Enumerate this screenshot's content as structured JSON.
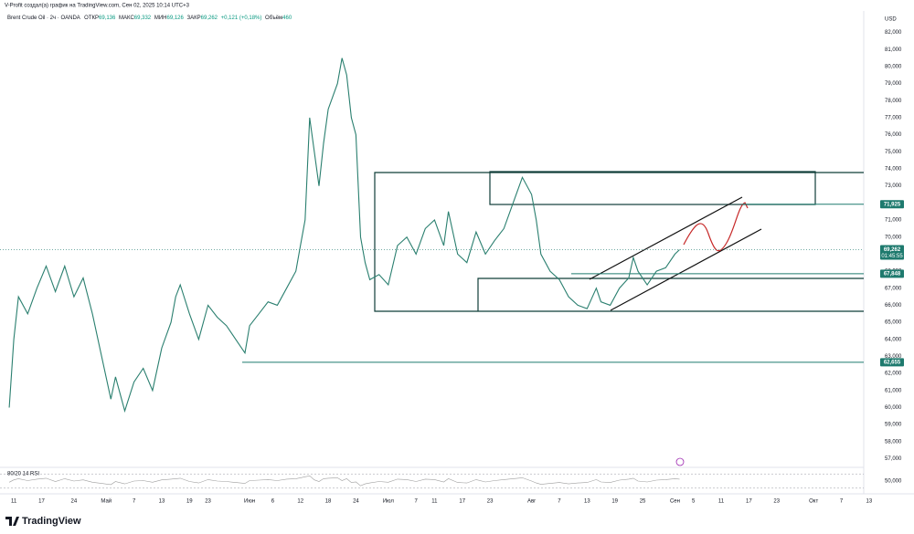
{
  "header": {
    "credit": "V-Profit создал(а) график на TradingView.com, Сен 02, 2025 10:14 UTC+3",
    "symbol": "Brent Crude Oil · 2ч · OANDA",
    "open_label": "ОТКР",
    "open": "69,136",
    "high_label": "МАКС",
    "high": "69,332",
    "low_label": "МИН",
    "low": "69,126",
    "close_label": "ЗАКР",
    "close": "69,262",
    "change": "+0,121 (+0,18%)",
    "volume_label": "Объём",
    "volume": "460"
  },
  "footer": {
    "brand": "TradingView"
  },
  "chart_data": {
    "type": "line",
    "currency": "USD",
    "color": "#2a7f6f",
    "x": [
      -1,
      0,
      1,
      3,
      5,
      7,
      9,
      11,
      13,
      15,
      17,
      19,
      21,
      22,
      24,
      26,
      28,
      30,
      32,
      34,
      35,
      36,
      38,
      40,
      42,
      44,
      46,
      48,
      50,
      51,
      53,
      55,
      57,
      59,
      61,
      62,
      63,
      64,
      65,
      66,
      67,
      68,
      70,
      71,
      72,
      73,
      74,
      75,
      76,
      77,
      79,
      81,
      83,
      85,
      87,
      89,
      91,
      93,
      94,
      96,
      98,
      100,
      102,
      104,
      106,
      108,
      110,
      112,
      113,
      114,
      116,
      118,
      120,
      122,
      124,
      126,
      127,
      129,
      131,
      133,
      134,
      135,
      137,
      139,
      141,
      143,
      144
    ],
    "values": [
      60.0,
      64.0,
      66.5,
      65.5,
      67.0,
      68.3,
      66.8,
      68.3,
      66.5,
      67.6,
      65.5,
      63.0,
      60.5,
      61.8,
      59.8,
      61.5,
      62.3,
      61.0,
      63.5,
      65.0,
      66.5,
      67.2,
      65.5,
      64.0,
      66.0,
      65.3,
      64.8,
      64.0,
      63.2,
      64.8,
      65.5,
      66.2,
      66.0,
      67.0,
      68.0,
      69.5,
      71.0,
      77.0,
      75.0,
      73.0,
      75.5,
      77.5,
      79.0,
      80.5,
      79.5,
      77.0,
      76.0,
      70.0,
      68.5,
      67.5,
      67.8,
      67.2,
      69.5,
      70.0,
      69.0,
      70.5,
      71.0,
      69.5,
      71.5,
      69.0,
      68.5,
      70.3,
      69.0,
      69.8,
      70.5,
      72.0,
      73.5,
      72.5,
      71.0,
      69.0,
      68.0,
      67.5,
      66.5,
      66.0,
      65.8,
      67.0,
      66.2,
      66.0,
      67.0,
      67.6,
      68.8,
      68.0,
      67.2,
      68.0,
      68.2,
      69.0,
      69.262
    ],
    "xlim": [
      -2,
      187
    ],
    "xticks": [
      {
        "value": 0,
        "label": "11"
      },
      {
        "value": 6,
        "label": "17"
      },
      {
        "value": 13,
        "label": "24"
      },
      {
        "value": 20,
        "label": "Май"
      },
      {
        "value": 26,
        "label": "7"
      },
      {
        "value": 32,
        "label": "13"
      },
      {
        "value": 38,
        "label": "19"
      },
      {
        "value": 42,
        "label": "23"
      },
      {
        "value": 51,
        "label": "Июн"
      },
      {
        "value": 56,
        "label": "6"
      },
      {
        "value": 62,
        "label": "12"
      },
      {
        "value": 68,
        "label": "18"
      },
      {
        "value": 74,
        "label": "24"
      },
      {
        "value": 81,
        "label": "Июл"
      },
      {
        "value": 87,
        "label": "7"
      },
      {
        "value": 91,
        "label": "11"
      },
      {
        "value": 97,
        "label": "17"
      },
      {
        "value": 103,
        "label": "23"
      },
      {
        "value": 112,
        "label": "Авг"
      },
      {
        "value": 118,
        "label": "7"
      },
      {
        "value": 124,
        "label": "13"
      },
      {
        "value": 130,
        "label": "19"
      },
      {
        "value": 136,
        "label": "25"
      },
      {
        "value": 143,
        "label": "Сен"
      },
      {
        "value": 147,
        "label": "5"
      },
      {
        "value": 153,
        "label": "11"
      },
      {
        "value": 159,
        "label": "17"
      },
      {
        "value": 165,
        "label": "23"
      },
      {
        "value": 173,
        "label": "Окт"
      },
      {
        "value": 179,
        "label": "7"
      },
      {
        "value": 185,
        "label": "13"
      }
    ],
    "ylim": [
      56.6,
      83.1
    ],
    "yticks": [
      {
        "value": 57,
        "label": "57,000"
      },
      {
        "value": 58,
        "label": "58,000"
      },
      {
        "value": 59,
        "label": "59,000"
      },
      {
        "value": 60,
        "label": "60,000"
      },
      {
        "value": 61,
        "label": "61,000"
      },
      {
        "value": 62,
        "label": "62,000"
      },
      {
        "value": 63,
        "label": "63,000"
      },
      {
        "value": 64,
        "label": "64,000"
      },
      {
        "value": 65,
        "label": "65,000"
      },
      {
        "value": 66,
        "label": "66,000"
      },
      {
        "value": 67,
        "label": "67,000"
      },
      {
        "value": 68,
        "label": "68,000"
      },
      {
        "value": 69,
        "label": "69,000"
      },
      {
        "value": 70,
        "label": "70,000"
      },
      {
        "value": 71,
        "label": "71,000"
      },
      {
        "value": 72,
        "label": "72,000"
      },
      {
        "value": 73,
        "label": "73,000"
      },
      {
        "value": 74,
        "label": "74,000"
      },
      {
        "value": 75,
        "label": "75,000"
      },
      {
        "value": 76,
        "label": "76,000"
      },
      {
        "value": 77,
        "label": "77,000"
      },
      {
        "value": 78,
        "label": "78,000"
      },
      {
        "value": 79,
        "label": "79,000"
      },
      {
        "value": 80,
        "label": "80,000"
      },
      {
        "value": 81,
        "label": "81,000"
      },
      {
        "value": 82,
        "label": "82,000"
      }
    ],
    "levels": [
      {
        "value": 71.925,
        "label": "71,925"
      },
      {
        "value": 67.848,
        "label": "67,848"
      },
      {
        "value": 62.655,
        "label": "62,655"
      }
    ],
    "last": {
      "value": 69.262,
      "label": "69,262",
      "countdown": "01:45:55"
    },
    "rsi": {
      "label": "80/20 14 RSI",
      "mid_label": "50,000",
      "ylim": [
        0,
        100
      ],
      "levels": [
        80,
        20
      ],
      "color": "#9e9e9e",
      "values": [
        45,
        55,
        60,
        52,
        58,
        62,
        48,
        60,
        50,
        55,
        45,
        40,
        35,
        48,
        38,
        50,
        52,
        45,
        55,
        58,
        60,
        62,
        48,
        42,
        56,
        50,
        48,
        44,
        40,
        52,
        54,
        56,
        52,
        58,
        60,
        64,
        68,
        72,
        55,
        48,
        60,
        62,
        64,
        52,
        60,
        44,
        46,
        30,
        38,
        42,
        48,
        45,
        58,
        56,
        48,
        58,
        56,
        46,
        60,
        44,
        42,
        56,
        46,
        52,
        56,
        60,
        64,
        50,
        42,
        36,
        40,
        44,
        38,
        42,
        44,
        56,
        46,
        44,
        54,
        58,
        62,
        50,
        46,
        54,
        56,
        60,
        58
      ]
    }
  }
}
